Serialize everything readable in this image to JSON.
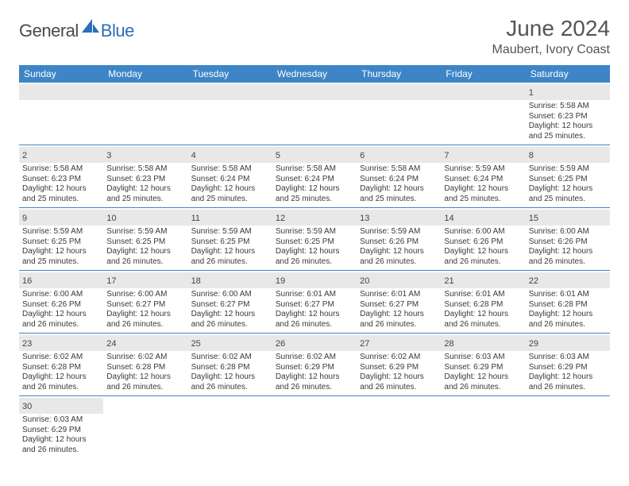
{
  "brand": {
    "text1": "General",
    "text2": "Blue"
  },
  "title": "June 2024",
  "location": "Maubert, Ivory Coast",
  "colors": {
    "header_bg": "#3d85c6",
    "header_text": "#ffffff",
    "daynum_bg": "#e8e8e8",
    "cell_border": "#3d85c6",
    "body_text": "#3a3a3a",
    "title_text": "#555555",
    "brand_gray": "#4a4a4a",
    "brand_blue": "#2a6fb5"
  },
  "day_names": [
    "Sunday",
    "Monday",
    "Tuesday",
    "Wednesday",
    "Thursday",
    "Friday",
    "Saturday"
  ],
  "weeks": [
    [
      null,
      null,
      null,
      null,
      null,
      null,
      {
        "n": "1",
        "sr": "Sunrise: 5:58 AM",
        "ss": "Sunset: 6:23 PM",
        "d1": "Daylight: 12 hours",
        "d2": "and 25 minutes."
      }
    ],
    [
      {
        "n": "2",
        "sr": "Sunrise: 5:58 AM",
        "ss": "Sunset: 6:23 PM",
        "d1": "Daylight: 12 hours",
        "d2": "and 25 minutes."
      },
      {
        "n": "3",
        "sr": "Sunrise: 5:58 AM",
        "ss": "Sunset: 6:23 PM",
        "d1": "Daylight: 12 hours",
        "d2": "and 25 minutes."
      },
      {
        "n": "4",
        "sr": "Sunrise: 5:58 AM",
        "ss": "Sunset: 6:24 PM",
        "d1": "Daylight: 12 hours",
        "d2": "and 25 minutes."
      },
      {
        "n": "5",
        "sr": "Sunrise: 5:58 AM",
        "ss": "Sunset: 6:24 PM",
        "d1": "Daylight: 12 hours",
        "d2": "and 25 minutes."
      },
      {
        "n": "6",
        "sr": "Sunrise: 5:58 AM",
        "ss": "Sunset: 6:24 PM",
        "d1": "Daylight: 12 hours",
        "d2": "and 25 minutes."
      },
      {
        "n": "7",
        "sr": "Sunrise: 5:59 AM",
        "ss": "Sunset: 6:24 PM",
        "d1": "Daylight: 12 hours",
        "d2": "and 25 minutes."
      },
      {
        "n": "8",
        "sr": "Sunrise: 5:59 AM",
        "ss": "Sunset: 6:25 PM",
        "d1": "Daylight: 12 hours",
        "d2": "and 25 minutes."
      }
    ],
    [
      {
        "n": "9",
        "sr": "Sunrise: 5:59 AM",
        "ss": "Sunset: 6:25 PM",
        "d1": "Daylight: 12 hours",
        "d2": "and 25 minutes."
      },
      {
        "n": "10",
        "sr": "Sunrise: 5:59 AM",
        "ss": "Sunset: 6:25 PM",
        "d1": "Daylight: 12 hours",
        "d2": "and 26 minutes."
      },
      {
        "n": "11",
        "sr": "Sunrise: 5:59 AM",
        "ss": "Sunset: 6:25 PM",
        "d1": "Daylight: 12 hours",
        "d2": "and 26 minutes."
      },
      {
        "n": "12",
        "sr": "Sunrise: 5:59 AM",
        "ss": "Sunset: 6:25 PM",
        "d1": "Daylight: 12 hours",
        "d2": "and 26 minutes."
      },
      {
        "n": "13",
        "sr": "Sunrise: 5:59 AM",
        "ss": "Sunset: 6:26 PM",
        "d1": "Daylight: 12 hours",
        "d2": "and 26 minutes."
      },
      {
        "n": "14",
        "sr": "Sunrise: 6:00 AM",
        "ss": "Sunset: 6:26 PM",
        "d1": "Daylight: 12 hours",
        "d2": "and 26 minutes."
      },
      {
        "n": "15",
        "sr": "Sunrise: 6:00 AM",
        "ss": "Sunset: 6:26 PM",
        "d1": "Daylight: 12 hours",
        "d2": "and 26 minutes."
      }
    ],
    [
      {
        "n": "16",
        "sr": "Sunrise: 6:00 AM",
        "ss": "Sunset: 6:26 PM",
        "d1": "Daylight: 12 hours",
        "d2": "and 26 minutes."
      },
      {
        "n": "17",
        "sr": "Sunrise: 6:00 AM",
        "ss": "Sunset: 6:27 PM",
        "d1": "Daylight: 12 hours",
        "d2": "and 26 minutes."
      },
      {
        "n": "18",
        "sr": "Sunrise: 6:00 AM",
        "ss": "Sunset: 6:27 PM",
        "d1": "Daylight: 12 hours",
        "d2": "and 26 minutes."
      },
      {
        "n": "19",
        "sr": "Sunrise: 6:01 AM",
        "ss": "Sunset: 6:27 PM",
        "d1": "Daylight: 12 hours",
        "d2": "and 26 minutes."
      },
      {
        "n": "20",
        "sr": "Sunrise: 6:01 AM",
        "ss": "Sunset: 6:27 PM",
        "d1": "Daylight: 12 hours",
        "d2": "and 26 minutes."
      },
      {
        "n": "21",
        "sr": "Sunrise: 6:01 AM",
        "ss": "Sunset: 6:28 PM",
        "d1": "Daylight: 12 hours",
        "d2": "and 26 minutes."
      },
      {
        "n": "22",
        "sr": "Sunrise: 6:01 AM",
        "ss": "Sunset: 6:28 PM",
        "d1": "Daylight: 12 hours",
        "d2": "and 26 minutes."
      }
    ],
    [
      {
        "n": "23",
        "sr": "Sunrise: 6:02 AM",
        "ss": "Sunset: 6:28 PM",
        "d1": "Daylight: 12 hours",
        "d2": "and 26 minutes."
      },
      {
        "n": "24",
        "sr": "Sunrise: 6:02 AM",
        "ss": "Sunset: 6:28 PM",
        "d1": "Daylight: 12 hours",
        "d2": "and 26 minutes."
      },
      {
        "n": "25",
        "sr": "Sunrise: 6:02 AM",
        "ss": "Sunset: 6:28 PM",
        "d1": "Daylight: 12 hours",
        "d2": "and 26 minutes."
      },
      {
        "n": "26",
        "sr": "Sunrise: 6:02 AM",
        "ss": "Sunset: 6:29 PM",
        "d1": "Daylight: 12 hours",
        "d2": "and 26 minutes."
      },
      {
        "n": "27",
        "sr": "Sunrise: 6:02 AM",
        "ss": "Sunset: 6:29 PM",
        "d1": "Daylight: 12 hours",
        "d2": "and 26 minutes."
      },
      {
        "n": "28",
        "sr": "Sunrise: 6:03 AM",
        "ss": "Sunset: 6:29 PM",
        "d1": "Daylight: 12 hours",
        "d2": "and 26 minutes."
      },
      {
        "n": "29",
        "sr": "Sunrise: 6:03 AM",
        "ss": "Sunset: 6:29 PM",
        "d1": "Daylight: 12 hours",
        "d2": "and 26 minutes."
      }
    ],
    [
      {
        "n": "30",
        "sr": "Sunrise: 6:03 AM",
        "ss": "Sunset: 6:29 PM",
        "d1": "Daylight: 12 hours",
        "d2": "and 26 minutes."
      },
      null,
      null,
      null,
      null,
      null,
      null
    ]
  ]
}
